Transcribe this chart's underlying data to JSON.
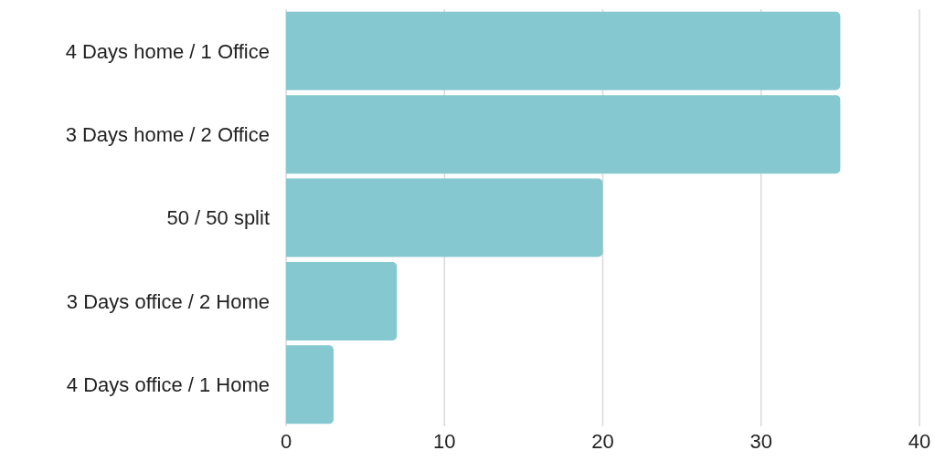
{
  "chart_data": {
    "type": "bar",
    "orientation": "horizontal",
    "categories": [
      "4 Days home / 1 Office",
      "3 Days home / 2 Office",
      "50 / 50 split",
      "3 Days office / 2 Home",
      "4 Days office / 1 Home"
    ],
    "values": [
      35,
      35,
      20,
      7,
      3
    ],
    "color": "#86c8d0",
    "xlim": [
      0,
      40
    ],
    "xticks": [
      0,
      10,
      20,
      30,
      40
    ],
    "grid": "x"
  }
}
